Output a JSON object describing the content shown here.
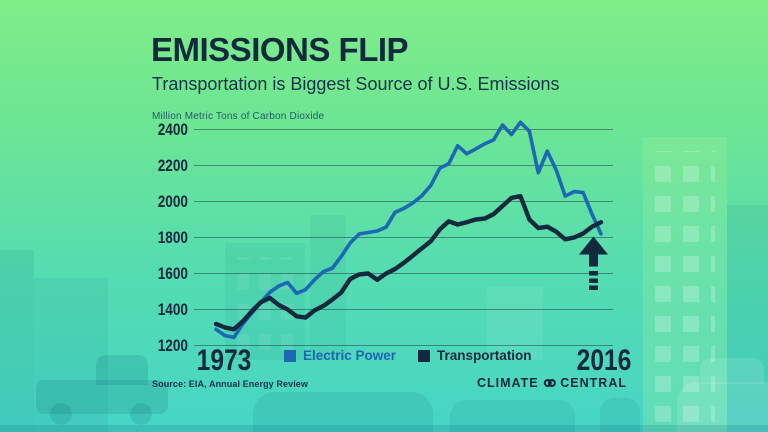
{
  "header": {
    "title": "EMISSIONS FLIP",
    "subtitle": "Transportation is Biggest Source of U.S. Emissions"
  },
  "chart_data": {
    "type": "line",
    "title": "EMISSIONS FLIP",
    "subtitle": "Transportation is Biggest Source of U.S. Emissions",
    "ylabel": "Million Metric Tons of Carbon Dioxide",
    "ylim": [
      1200,
      2400
    ],
    "yticks": [
      2400,
      2200,
      2000,
      1800,
      1600,
      1400,
      1200
    ],
    "xticks": [
      "1973",
      "2016"
    ],
    "grid": "horizontal",
    "legend_position": "bottom",
    "x": [
      1973,
      1974,
      1975,
      1976,
      1977,
      1978,
      1979,
      1980,
      1981,
      1982,
      1983,
      1984,
      1985,
      1986,
      1987,
      1988,
      1989,
      1990,
      1991,
      1992,
      1993,
      1994,
      1995,
      1996,
      1997,
      1998,
      1999,
      2000,
      2001,
      2002,
      2003,
      2004,
      2005,
      2006,
      2007,
      2008,
      2009,
      2010,
      2011,
      2012,
      2013,
      2014,
      2015,
      2016
    ],
    "series": [
      {
        "name": "Electric Power",
        "color": "#1e67b2",
        "values": [
          1290,
          1255,
          1245,
          1320,
          1380,
          1440,
          1495,
          1530,
          1550,
          1490,
          1510,
          1565,
          1610,
          1630,
          1695,
          1770,
          1820,
          1828,
          1836,
          1858,
          1940,
          1962,
          1992,
          2032,
          2090,
          2185,
          2210,
          2310,
          2265,
          2292,
          2320,
          2342,
          2425,
          2372,
          2440,
          2390,
          2160,
          2280,
          2175,
          2030,
          2055,
          2050,
          1930,
          1820
        ]
      },
      {
        "name": "Transportation",
        "color": "#13293e",
        "values": [
          1320,
          1300,
          1290,
          1335,
          1390,
          1440,
          1465,
          1425,
          1400,
          1362,
          1355,
          1395,
          1420,
          1455,
          1495,
          1570,
          1595,
          1600,
          1565,
          1600,
          1625,
          1660,
          1700,
          1740,
          1780,
          1845,
          1890,
          1872,
          1885,
          1900,
          1905,
          1930,
          1975,
          2020,
          2030,
          1900,
          1852,
          1860,
          1832,
          1790,
          1800,
          1822,
          1860,
          1885
        ]
      }
    ],
    "annotation": {
      "type": "up-arrow",
      "at_x": "2016"
    }
  },
  "footer": {
    "source": "Source: EIA, Annual Energy Review",
    "logo": {
      "word1": "CLIMATE",
      "word2": "CENTRAL"
    }
  },
  "colors": {
    "title": "#13293e",
    "electric_power": "#1e67b2",
    "transportation": "#13293e",
    "background_top": "#7eec89",
    "background_bottom": "#46d5c7"
  }
}
